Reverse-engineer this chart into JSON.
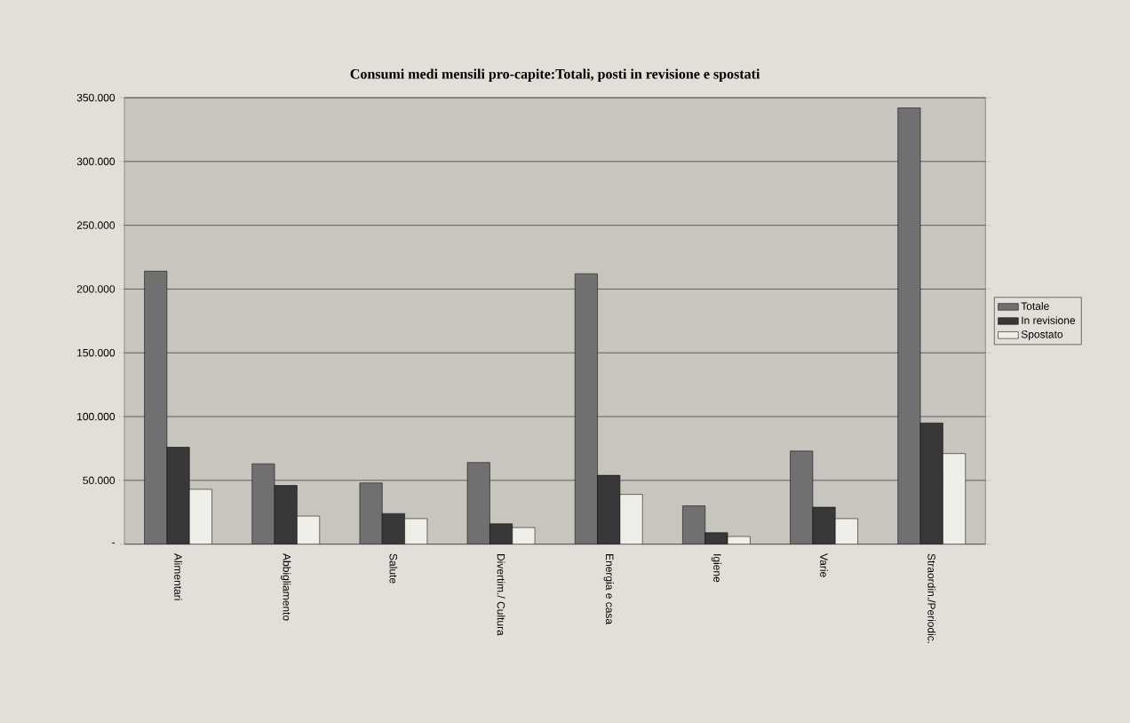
{
  "chart_data": {
    "type": "bar",
    "title": "Consumi medi mensili pro-capite:Totali, posti in revisione e spostati",
    "categories": [
      "Alimentari",
      "Abbigliamento",
      "Salute",
      "Divertim./ Cultura",
      "Energia e casa",
      "Igiene",
      "Varie",
      "Straordin./Periodic."
    ],
    "series": [
      {
        "name": "Totale",
        "color": "#707070",
        "values": [
          214000,
          63000,
          48000,
          64000,
          212000,
          30000,
          73000,
          342000
        ]
      },
      {
        "name": "In revisione",
        "color": "#383838",
        "values": [
          76000,
          46000,
          24000,
          16000,
          54000,
          9000,
          29000,
          95000
        ]
      },
      {
        "name": "Spostato",
        "color": "#f0eee8",
        "values": [
          43000,
          22000,
          20000,
          13000,
          39000,
          6000,
          20000,
          71000
        ]
      }
    ],
    "ylim": [
      0,
      350000
    ],
    "yticks": [
      {
        "value": 0,
        "label": "-"
      },
      {
        "value": 50000,
        "label": "50.000"
      },
      {
        "value": 100000,
        "label": "100.000"
      },
      {
        "value": 150000,
        "label": "150.000"
      },
      {
        "value": 200000,
        "label": "200.000"
      },
      {
        "value": 250000,
        "label": "250.000"
      },
      {
        "value": 300000,
        "label": "300.000"
      },
      {
        "value": 350000,
        "label": "350.000"
      }
    ],
    "grid": "y",
    "legend": "right"
  }
}
